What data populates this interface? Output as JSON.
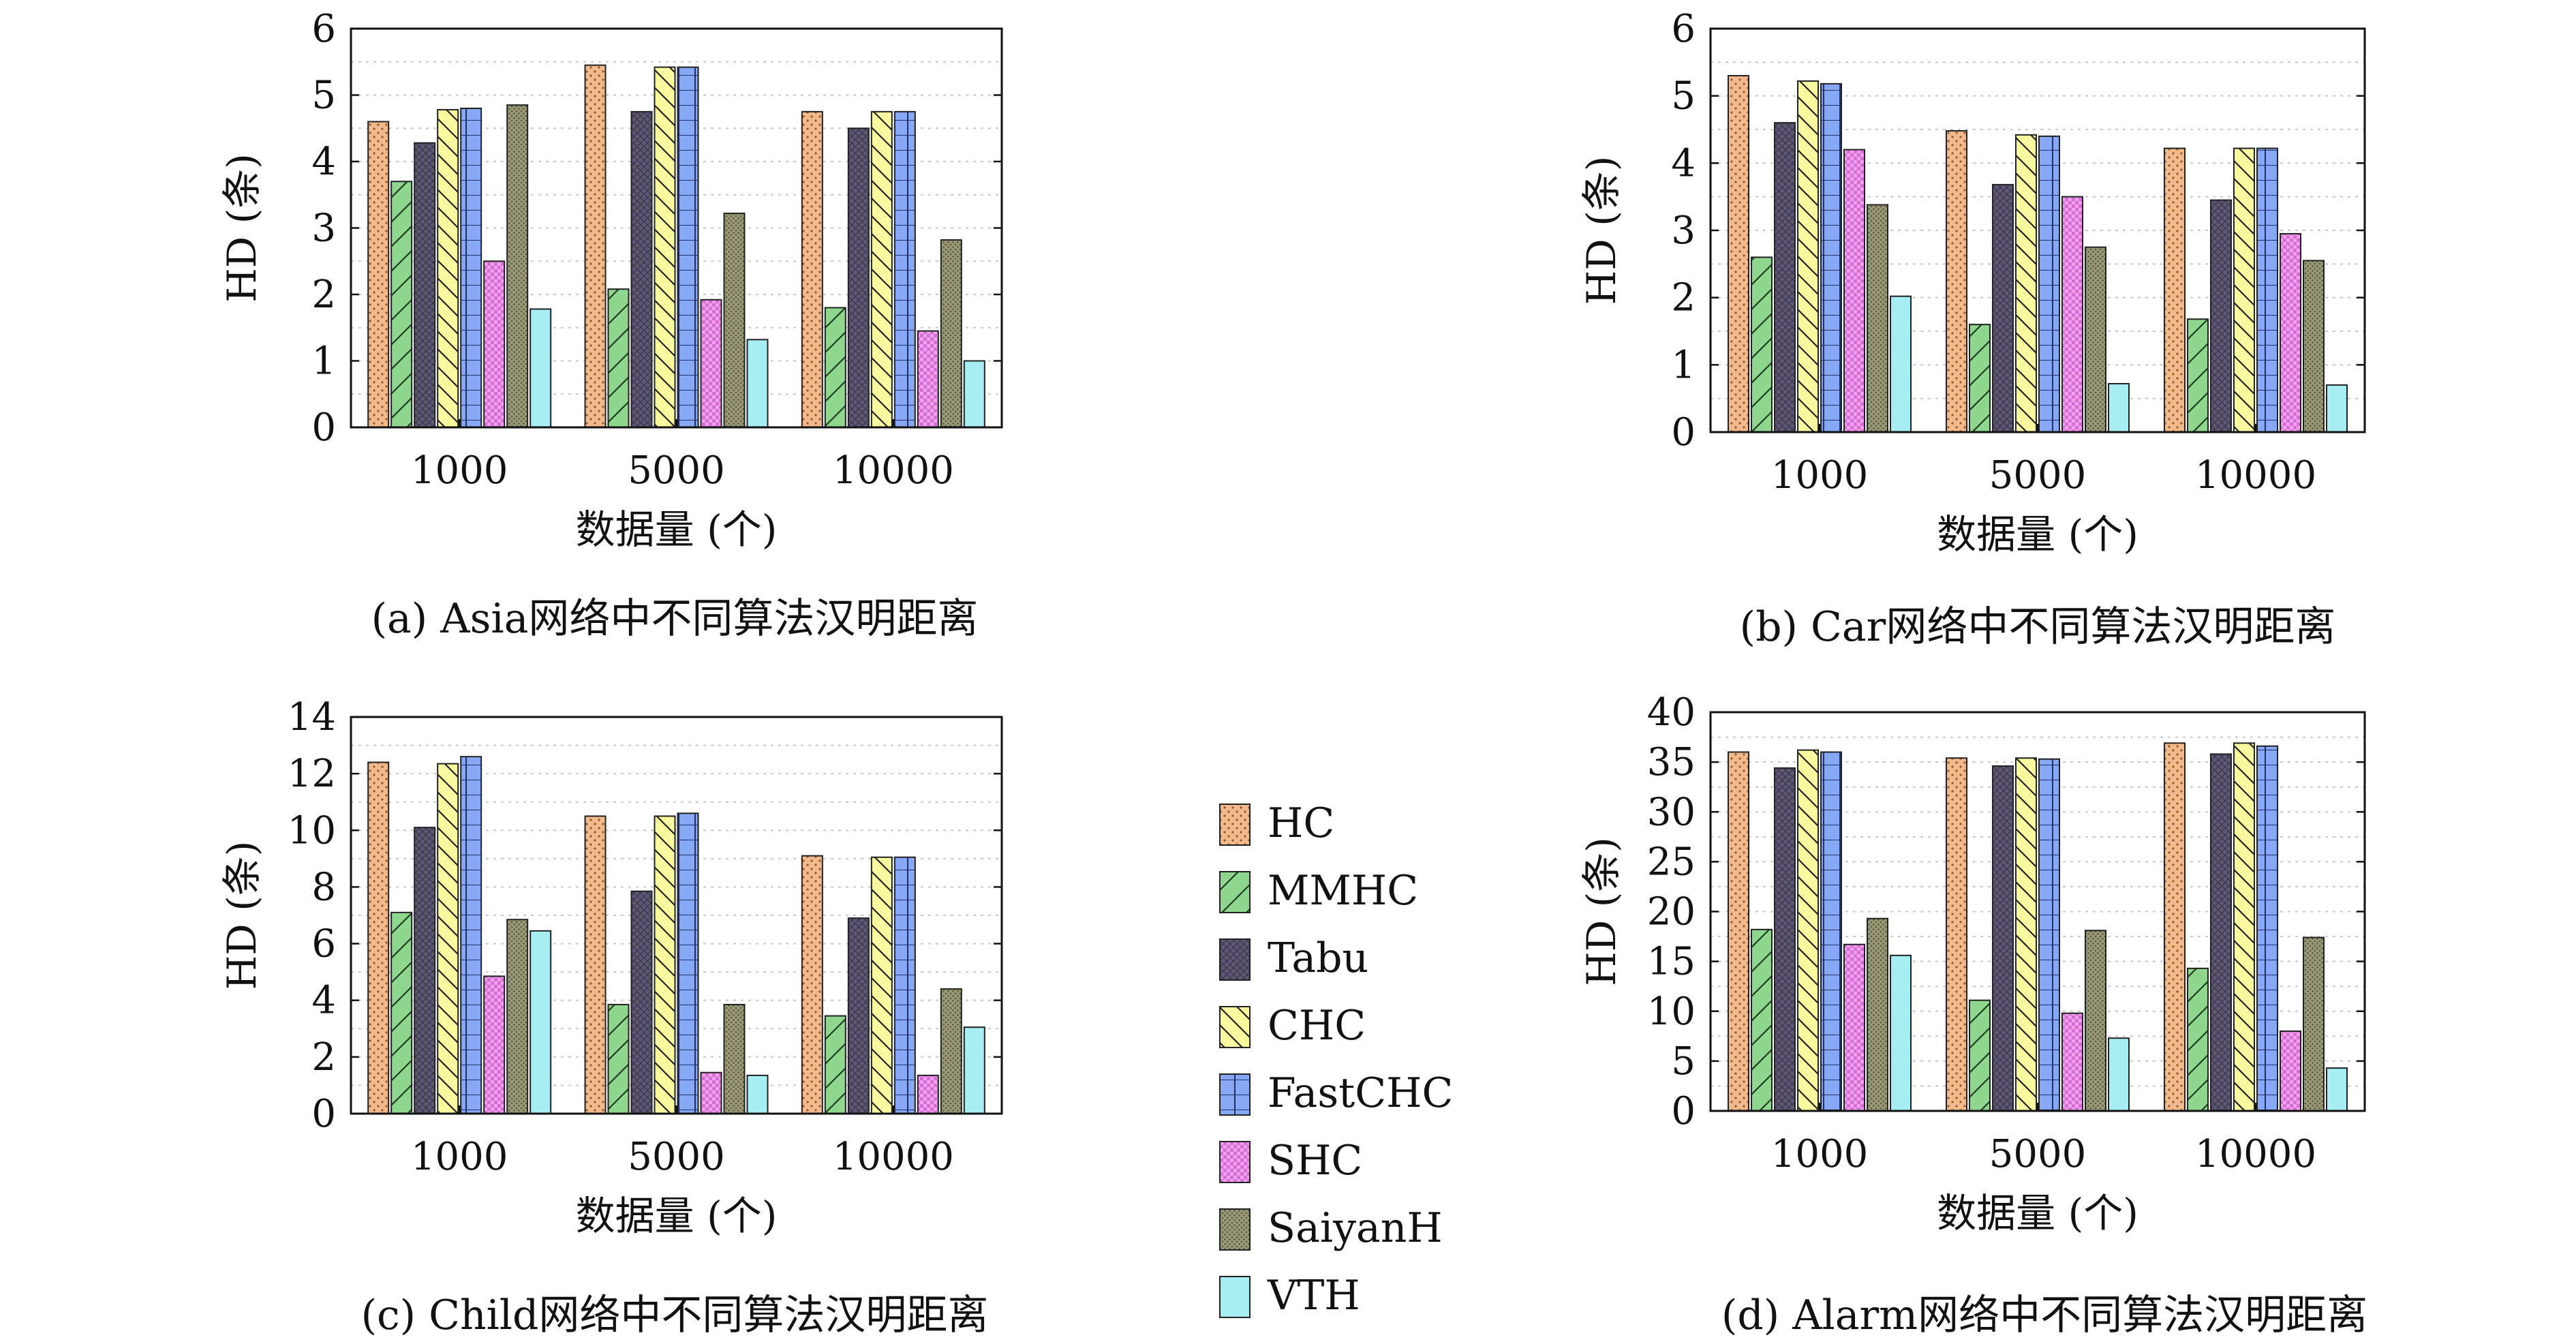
{
  "legend": {
    "items": [
      {
        "name": "HC",
        "color": "#f2b98a",
        "pattern": "dots"
      },
      {
        "name": "MMHC",
        "color": "#8fd68f",
        "pattern": "diag-fwd"
      },
      {
        "name": "Tabu",
        "color": "#5f5874",
        "pattern": "crosshatch"
      },
      {
        "name": "CHC",
        "color": "#fafaa0",
        "pattern": "diag-back"
      },
      {
        "name": "FastCHC",
        "color": "#87a8f5",
        "pattern": "grid"
      },
      {
        "name": "SHC",
        "color": "#f3a0f0",
        "pattern": "checker"
      },
      {
        "name": "SaiyanH",
        "color": "#9a9a76",
        "pattern": "dots-dense"
      },
      {
        "name": "VTH",
        "color": "#a6eef2",
        "pattern": "plain"
      }
    ]
  },
  "chart_data": [
    {
      "type": "bar",
      "caption": "(a) Asia网络中不同算法汉明距离",
      "xlabel": "数据量 (个)",
      "ylabel": "HD (条)",
      "categories": [
        "1000",
        "5000",
        "10000"
      ],
      "ylim": [
        0,
        6
      ],
      "yticks": [
        "0",
        "1",
        "2",
        "3",
        "4",
        "5",
        "6"
      ],
      "series": [
        {
          "name": "HC",
          "values": [
            4.6,
            5.45,
            4.75
          ]
        },
        {
          "name": "MMHC",
          "values": [
            3.7,
            2.08,
            1.8
          ]
        },
        {
          "name": "Tabu",
          "values": [
            4.28,
            4.75,
            4.5
          ]
        },
        {
          "name": "CHC",
          "values": [
            4.78,
            5.42,
            4.75
          ]
        },
        {
          "name": "FastCHC",
          "values": [
            4.8,
            5.42,
            4.75
          ]
        },
        {
          "name": "SHC",
          "values": [
            2.5,
            1.92,
            1.45
          ]
        },
        {
          "name": "SaiyanH",
          "values": [
            4.85,
            3.22,
            2.82
          ]
        },
        {
          "name": "VTH",
          "values": [
            1.78,
            1.32,
            1.0
          ]
        }
      ],
      "grid": true
    },
    {
      "type": "bar",
      "caption": "(b) Car网络中不同算法汉明距离",
      "xlabel": "数据量 (个)",
      "ylabel": "HD (条)",
      "categories": [
        "1000",
        "5000",
        "10000"
      ],
      "ylim": [
        0,
        6
      ],
      "yticks": [
        "0",
        "1",
        "2",
        "3",
        "4",
        "5",
        "6"
      ],
      "series": [
        {
          "name": "HC",
          "values": [
            5.3,
            4.48,
            4.22
          ]
        },
        {
          "name": "MMHC",
          "values": [
            2.6,
            1.6,
            1.68
          ]
        },
        {
          "name": "Tabu",
          "values": [
            4.6,
            3.68,
            3.45
          ]
        },
        {
          "name": "CHC",
          "values": [
            5.22,
            4.42,
            4.22
          ]
        },
        {
          "name": "FastCHC",
          "values": [
            5.18,
            4.4,
            4.22
          ]
        },
        {
          "name": "SHC",
          "values": [
            4.2,
            3.5,
            2.95
          ]
        },
        {
          "name": "SaiyanH",
          "values": [
            3.38,
            2.75,
            2.55
          ]
        },
        {
          "name": "VTH",
          "values": [
            2.02,
            0.72,
            0.7
          ]
        }
      ],
      "grid": true
    },
    {
      "type": "bar",
      "caption": "(c) Child网络中不同算法汉明距离",
      "xlabel": "数据量 (个)",
      "ylabel": "HD (条)",
      "categories": [
        "1000",
        "5000",
        "10000"
      ],
      "ylim": [
        0,
        14
      ],
      "yticks": [
        "0",
        "2",
        "4",
        "6",
        "8",
        "10",
        "12",
        "14"
      ],
      "series": [
        {
          "name": "HC",
          "values": [
            12.4,
            10.5,
            9.1
          ]
        },
        {
          "name": "MMHC",
          "values": [
            7.1,
            3.85,
            3.45
          ]
        },
        {
          "name": "Tabu",
          "values": [
            10.1,
            7.85,
            6.9
          ]
        },
        {
          "name": "CHC",
          "values": [
            12.35,
            10.5,
            9.05
          ]
        },
        {
          "name": "FastCHC",
          "values": [
            12.6,
            10.6,
            9.05
          ]
        },
        {
          "name": "SHC",
          "values": [
            4.85,
            1.45,
            1.35
          ]
        },
        {
          "name": "SaiyanH",
          "values": [
            6.85,
            3.85,
            4.4
          ]
        },
        {
          "name": "VTH",
          "values": [
            6.45,
            1.35,
            3.05
          ]
        }
      ],
      "grid": true
    },
    {
      "type": "bar",
      "caption": "(d) Alarm网络中不同算法汉明距离",
      "xlabel": "数据量 (个)",
      "ylabel": "HD (条)",
      "categories": [
        "1000",
        "5000",
        "10000"
      ],
      "ylim": [
        0,
        40
      ],
      "yticks": [
        "0",
        "5",
        "10",
        "15",
        "20",
        "25",
        "30",
        "35",
        "40"
      ],
      "series": [
        {
          "name": "HC",
          "values": [
            36.0,
            35.4,
            36.9
          ]
        },
        {
          "name": "MMHC",
          "values": [
            18.2,
            11.1,
            14.3
          ]
        },
        {
          "name": "Tabu",
          "values": [
            34.4,
            34.6,
            35.8
          ]
        },
        {
          "name": "CHC",
          "values": [
            36.2,
            35.4,
            36.9
          ]
        },
        {
          "name": "FastCHC",
          "values": [
            36.0,
            35.3,
            36.6
          ]
        },
        {
          "name": "SHC",
          "values": [
            16.7,
            9.8,
            8.0
          ]
        },
        {
          "name": "SaiyanH",
          "values": [
            19.3,
            18.1,
            17.4
          ]
        },
        {
          "name": "VTH",
          "values": [
            15.6,
            7.3,
            4.3
          ]
        }
      ],
      "grid": true
    }
  ]
}
